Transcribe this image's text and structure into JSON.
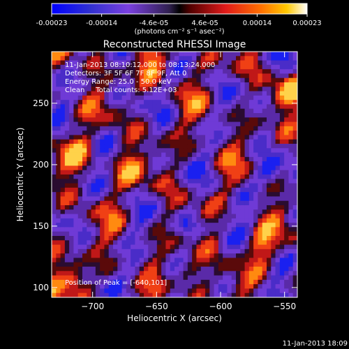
{
  "colorbar": {
    "tick_labels": [
      "-0.00023",
      "-0.00014",
      "-4.6e-05",
      "4.6e-05",
      "0.00014",
      "0.00023"
    ],
    "tick_values": [
      -0.00023,
      -0.00014,
      -4.6e-05,
      4.6e-05,
      0.00014,
      0.00023
    ],
    "range": [
      -0.00023,
      0.00023
    ],
    "unit_label": "(photons cm⁻² s⁻¹ asec⁻²)",
    "colors": [
      "#0000ff",
      "#3333cc",
      "#6a2bd6",
      "#8a5cf0",
      "#000000",
      "#a00000",
      "#e01a1a",
      "#ff6a00",
      "#ffc000",
      "#ffffff"
    ]
  },
  "chart_data": {
    "type": "heatmap",
    "title": "Reconstructed RHESSI Image",
    "xlabel": "Heliocentric X (arcsec)",
    "ylabel": "Heliocentric Y (arcsec)",
    "xlim": [
      -732,
      -540
    ],
    "ylim": [
      92,
      292
    ],
    "x_ticks": [
      -700,
      -650,
      -600,
      -550
    ],
    "x_tick_labels": [
      "−700",
      "−650",
      "−600",
      "−550"
    ],
    "y_ticks": [
      100,
      150,
      200,
      250
    ],
    "y_tick_labels": [
      "100",
      "150",
      "200",
      "250"
    ],
    "annotations": [
      "11-Jan-2013 08:10:12.000 to 08:13:24.000",
      "Detectors: 3F 5F 6F 7F 8F 9F, Att 0",
      "Energy Range: 25.0 - 50.0 keV",
      "Clean     Total counts: 5.12E+03"
    ],
    "peak_annotation": "Position of Peak = [-640,101]",
    "peak": [
      -640,
      101
    ],
    "heatmap_note": "grid of flux values approx; map pattern reconstructed visually",
    "grid_size": [
      56,
      56
    ]
  },
  "footer": {
    "timestamp": "11-Jan-2013 18:09"
  }
}
